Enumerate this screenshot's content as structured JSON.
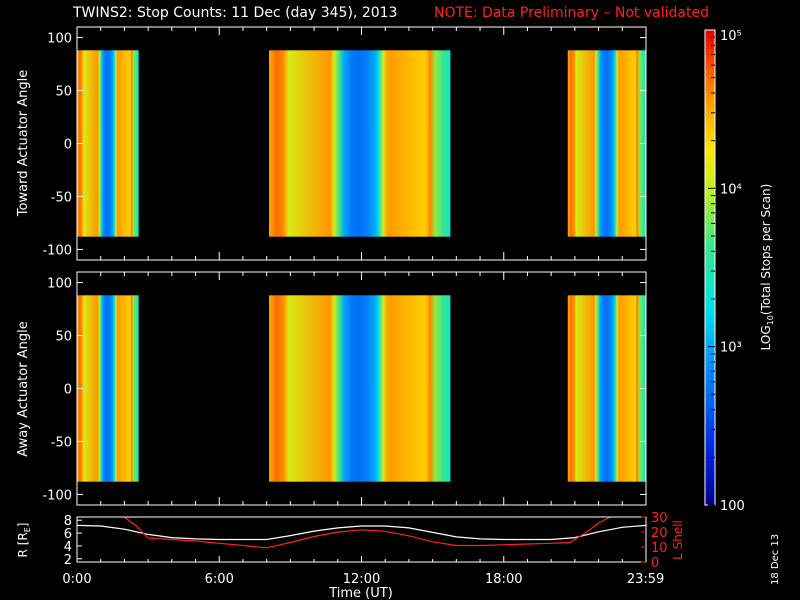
{
  "title": {
    "main": "TWINS2: Stop Counts: 11 Dec (day 345), 2013",
    "note": "NOTE: Data Preliminary – Not validated"
  },
  "date_stamp": "18 Dec 13",
  "colors": {
    "background": "#000000",
    "axes": "#ffffff",
    "note_text": "#ff2020",
    "l_shell_line": "#ff2020",
    "r_line": "#ffffff"
  },
  "colorbar": {
    "label": "LOG10(Total Stops per Scan)",
    "label_parts": {
      "pre": "LOG",
      "sub": "10",
      "post": "(Total Stops per Scan)"
    },
    "ticks": [
      {
        "value": 100,
        "label": "100"
      },
      {
        "value": 1000,
        "label": "10³"
      },
      {
        "value": 10000,
        "label": "10⁴"
      },
      {
        "value": 100000,
        "label": "10⁵"
      }
    ],
    "range": [
      100,
      100000
    ],
    "scale": "log"
  },
  "chart_data": [
    {
      "type": "heatmap",
      "name": "toward",
      "ylabel": "Toward Actuator Angle",
      "xlim": [
        0,
        24
      ],
      "ylim": [
        -110,
        110
      ],
      "yticks": [
        -100,
        -50,
        0,
        50,
        100
      ],
      "angle_range": [
        -88,
        88
      ],
      "data_intervals_hours": [
        [
          0,
          2.6
        ],
        [
          8.1,
          15.75
        ],
        [
          20.7,
          24
        ]
      ],
      "color_scale": "log",
      "clim": [
        100,
        100000
      ]
    },
    {
      "type": "heatmap",
      "name": "away",
      "ylabel": "Away Actuator Angle",
      "xlim": [
        0,
        24
      ],
      "ylim": [
        -110,
        110
      ],
      "yticks": [
        -100,
        -50,
        0,
        50,
        100
      ],
      "angle_range": [
        -88,
        88
      ],
      "data_intervals_hours": [
        [
          0,
          2.6
        ],
        [
          8.1,
          15.75
        ],
        [
          20.7,
          24
        ]
      ],
      "color_scale": "log",
      "clim": [
        100,
        100000
      ]
    },
    {
      "type": "line",
      "name": "orbit",
      "xlabel": "Time (UT)",
      "xlim": [
        0,
        24
      ],
      "xticks": [
        {
          "value": 0,
          "label": "0:00"
        },
        {
          "value": 6,
          "label": "6:00"
        },
        {
          "value": 12,
          "label": "12:00"
        },
        {
          "value": 18,
          "label": "18:00"
        },
        {
          "value": 23.983,
          "label": "23:59"
        }
      ],
      "ylabel_left": "R [Rₑ]",
      "ylabel_left_parts": {
        "pre": "R [R",
        "sub": "E",
        "post": "]"
      },
      "ylim_left": [
        1.5,
        8.5
      ],
      "yticks_left": [
        2,
        4,
        6,
        8
      ],
      "ylabel_right": "L Shell",
      "ylim_right": [
        0,
        30
      ],
      "yticks_right": [
        0,
        10,
        20,
        30
      ],
      "series": [
        {
          "name": "R",
          "axis": "left",
          "x": [
            0,
            1,
            2,
            3,
            4,
            5,
            6,
            7,
            8,
            9,
            10,
            11,
            12,
            13,
            14,
            15,
            16,
            17,
            18,
            19,
            20,
            21,
            22,
            23,
            24
          ],
          "y": [
            7.2,
            7.1,
            6.6,
            5.8,
            5.3,
            5.1,
            5.0,
            5.0,
            5.0,
            5.6,
            6.3,
            6.8,
            7.1,
            7.1,
            6.8,
            6.1,
            5.4,
            5.1,
            5.0,
            5.0,
            5.0,
            5.3,
            6.2,
            6.9,
            7.2
          ]
        },
        {
          "name": "L Shell",
          "axis": "right",
          "x": [
            2.0,
            2.5,
            3.0,
            4.0,
            5.0,
            6.0,
            7.0,
            8.0,
            9.0,
            10.0,
            11.0,
            12.0,
            13.0,
            14.0,
            15.0,
            16.0,
            17.0,
            18.0,
            19.0,
            20.0,
            20.8,
            21.5,
            22.0,
            22.5
          ],
          "y": [
            32,
            24,
            16,
            15,
            14,
            12.5,
            11,
            9.5,
            13,
            17,
            20,
            21.5,
            20.5,
            17.5,
            13.5,
            11,
            11,
            11.5,
            12,
            12.5,
            13,
            20,
            26,
            32
          ]
        }
      ]
    }
  ]
}
